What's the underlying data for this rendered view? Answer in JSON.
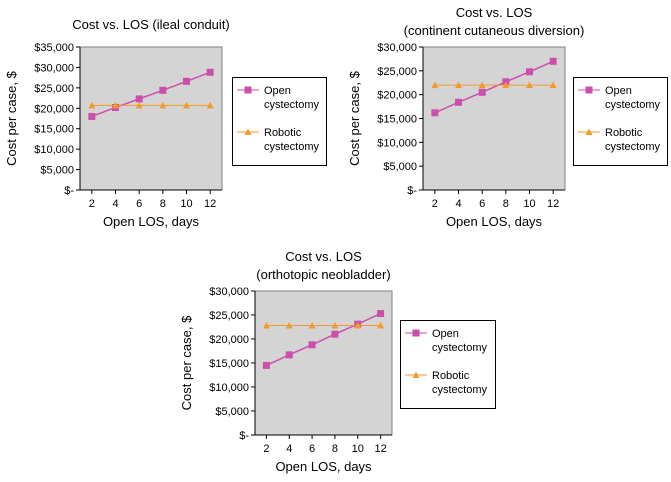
{
  "chart_data": [
    {
      "type": "line",
      "title": "Cost vs. LOS (ileal conduit)",
      "x_label": "Open LOS, days",
      "y_label": "Cost per case, $",
      "x": [
        2,
        4,
        6,
        8,
        10,
        12
      ],
      "xlim": [
        1,
        13
      ],
      "xticks": [
        2,
        4,
        6,
        8,
        10,
        12
      ],
      "ylim": [
        0,
        35000
      ],
      "yticks": [
        {
          "value": 0,
          "label": "$-"
        },
        {
          "value": 5000,
          "label": "$5,000"
        },
        {
          "value": 10000,
          "label": "$10,000"
        },
        {
          "value": 15000,
          "label": "$15,000"
        },
        {
          "value": 20000,
          "label": "$20,000"
        },
        {
          "value": 25000,
          "label": "$25,000"
        },
        {
          "value": 30000,
          "label": "$30,000"
        },
        {
          "value": 35000,
          "label": "$35,000"
        }
      ],
      "series": [
        {
          "name": "Open cystectomy",
          "color": "#cc4fac",
          "marker": "square",
          "values": [
            18000,
            20200,
            22300,
            24400,
            26600,
            28800
          ]
        },
        {
          "name": "Robotic cystectomy",
          "color": "#f39a2b",
          "marker": "triangle",
          "values": [
            20700,
            20700,
            20700,
            20700,
            20700,
            20700
          ]
        }
      ]
    },
    {
      "type": "line",
      "title": "Cost vs. LOS",
      "subtitle": "(continent cutaneous diversion)",
      "x_label": "Open LOS, days",
      "y_label": "Cost per case, $",
      "x": [
        2,
        4,
        6,
        8,
        10,
        12
      ],
      "xlim": [
        1,
        13
      ],
      "xticks": [
        2,
        4,
        6,
        8,
        10,
        12
      ],
      "ylim": [
        0,
        30000
      ],
      "yticks": [
        {
          "value": 0,
          "label": "$-"
        },
        {
          "value": 5000,
          "label": "$5,000"
        },
        {
          "value": 10000,
          "label": "$10,000"
        },
        {
          "value": 15000,
          "label": "$15,000"
        },
        {
          "value": 20000,
          "label": "$20,000"
        },
        {
          "value": 25000,
          "label": "$25,000"
        },
        {
          "value": 30000,
          "label": "$30,000"
        }
      ],
      "series": [
        {
          "name": "Open cystectomy",
          "color": "#cc4fac",
          "marker": "square",
          "values": [
            16200,
            18400,
            20500,
            22700,
            24800,
            27000
          ]
        },
        {
          "name": "Robotic cystectomy",
          "color": "#f39a2b",
          "marker": "triangle",
          "values": [
            22000,
            22000,
            22000,
            22000,
            22000,
            22000
          ]
        }
      ]
    },
    {
      "type": "line",
      "title": "Cost vs. LOS",
      "subtitle": "(orthotopic neobladder)",
      "x_label": "Open LOS, days",
      "y_label": "Cost per case, $",
      "x": [
        2,
        4,
        6,
        8,
        10,
        12
      ],
      "xlim": [
        1,
        13
      ],
      "xticks": [
        2,
        4,
        6,
        8,
        10,
        12
      ],
      "ylim": [
        0,
        30000
      ],
      "yticks": [
        {
          "value": 0,
          "label": "$-"
        },
        {
          "value": 5000,
          "label": "$5,000"
        },
        {
          "value": 10000,
          "label": "$10,000"
        },
        {
          "value": 15000,
          "label": "$15,000"
        },
        {
          "value": 20000,
          "label": "$20,000"
        },
        {
          "value": 25000,
          "label": "$25,000"
        },
        {
          "value": 30000,
          "label": "$30,000"
        }
      ],
      "series": [
        {
          "name": "Open cystectomy",
          "color": "#cc4fac",
          "marker": "square",
          "values": [
            14500,
            16700,
            18800,
            21000,
            23100,
            25300
          ]
        },
        {
          "name": "Robotic cystectomy",
          "color": "#f39a2b",
          "marker": "triangle",
          "values": [
            22800,
            22800,
            22800,
            22800,
            22800,
            22800
          ]
        }
      ]
    }
  ]
}
